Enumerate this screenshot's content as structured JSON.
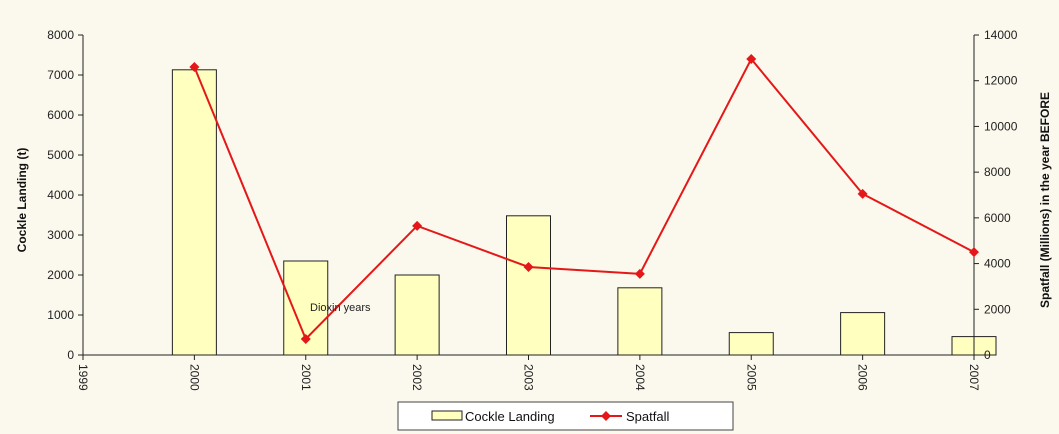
{
  "chart_data": {
    "type": "bar",
    "x": [
      "1999",
      "2000",
      "2001",
      "2002",
      "2003",
      "2004",
      "2005",
      "2006",
      "2007"
    ],
    "series": [
      {
        "name": "Cockle Landing",
        "type": "bar",
        "axis": "left",
        "values": [
          null,
          7130,
          2350,
          2000,
          3480,
          1680,
          560,
          1060,
          460
        ],
        "color": "#ffffc0"
      },
      {
        "name": "Spatfall",
        "type": "line",
        "axis": "right",
        "values": [
          null,
          12600,
          700,
          5650,
          3850,
          3550,
          12950,
          7050,
          4500
        ],
        "color": "#e41818"
      }
    ],
    "ylabel_left": "Cockle Landing (t)",
    "ylabel_right": "Spatfall (Millions) in the year BEFORE",
    "ylim_left": [
      0,
      8000
    ],
    "ylim_right": [
      0,
      14000
    ],
    "yticks_left": [
      "0",
      "1000",
      "2000",
      "3000",
      "4000",
      "5000",
      "6000",
      "7000",
      "8000"
    ],
    "yticks_right": [
      "0",
      "2000",
      "4000",
      "6000",
      "8000",
      "10000",
      "12000",
      "14000"
    ],
    "annotation": "Dioxin years",
    "legend_position": "bottom",
    "grid": false
  }
}
